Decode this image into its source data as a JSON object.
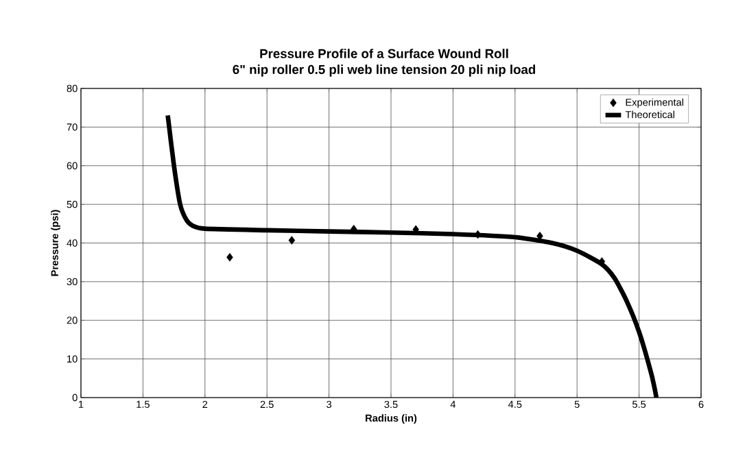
{
  "chart_data": {
    "type": "scatter",
    "title": "Pressure Profile of a Surface Wound Roll",
    "subtitle": "6\" nip roller 0.5 pli web line tension 20 pli nip load",
    "xlabel": "Radius (in)",
    "ylabel": "Pressure (psi)",
    "xlim": [
      1,
      6
    ],
    "ylim": [
      0,
      80
    ],
    "xticks": [
      1,
      1.5,
      2,
      2.5,
      3,
      3.5,
      4,
      4.5,
      5,
      5.5,
      6
    ],
    "yticks": [
      0,
      10,
      20,
      30,
      40,
      50,
      60,
      70,
      80
    ],
    "grid": true,
    "legend": "top right",
    "series": [
      {
        "name": "Experimental",
        "marker": "diamond",
        "color": "#000000",
        "x": [
          2.2,
          2.7,
          3.2,
          3.7,
          4.2,
          4.7,
          5.2
        ],
        "values": [
          36.3,
          40.7,
          43.6,
          43.5,
          42.2,
          41.8,
          35.2
        ]
      },
      {
        "name": "Theoretical",
        "type": "line",
        "marker": "none",
        "line_style": "solid",
        "color": "#000000",
        "x": [
          1.7,
          1.75,
          1.8,
          1.85,
          1.9,
          2.0,
          2.5,
          3.0,
          3.5,
          4.0,
          4.5,
          4.8,
          5.0,
          5.2,
          5.3,
          5.4,
          5.5,
          5.6,
          5.64
        ],
        "values": [
          73,
          60,
          50,
          46,
          44.5,
          43.7,
          43.3,
          43,
          42.7,
          42.3,
          41.5,
          40,
          38,
          34.5,
          31,
          25,
          17,
          6,
          0
        ]
      }
    ]
  }
}
